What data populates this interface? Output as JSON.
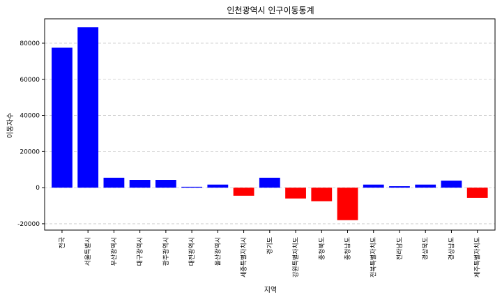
{
  "chart_data": {
    "type": "bar",
    "title": "인천광역시 인구이동통계",
    "xlabel": "지역",
    "ylabel": "이동자수",
    "categories": [
      "전국",
      "서울특별시",
      "부산광역시",
      "대구광역시",
      "광주광역시",
      "대전광역시",
      "울산광역시",
      "세종특별자치시",
      "경기도",
      "강원특별자치도",
      "충청북도",
      "충청남도",
      "전북특별자치도",
      "전라남도",
      "경상북도",
      "경상남도",
      "제주특별자치도"
    ],
    "values": [
      77500,
      88800,
      5500,
      4300,
      4300,
      500,
      1700,
      -4500,
      5500,
      -6000,
      -7500,
      -18000,
      1700,
      800,
      1700,
      3900,
      -5700
    ],
    "ylim": [
      -23500,
      93500
    ],
    "yticks": [
      -20000,
      0,
      20000,
      40000,
      60000,
      80000
    ],
    "ytick_labels": [
      "-20000",
      "0",
      "20000",
      "40000",
      "60000",
      "80000"
    ],
    "colors": {
      "positive": "#0000ff",
      "negative": "#ff0000",
      "grid": "#c8c8c8"
    },
    "grid": true,
    "grid_axis": "y"
  }
}
